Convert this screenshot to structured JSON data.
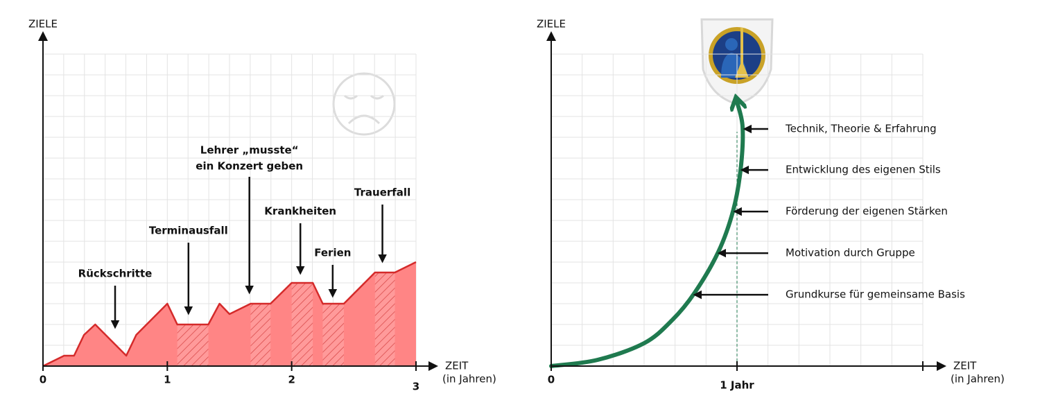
{
  "chart_data": [
    {
      "type": "area",
      "ylabel": "ZIELE",
      "xlabel": "ZEIT",
      "xunit": "(in Jahren)",
      "x": [
        0,
        0.17,
        0.25,
        0.33,
        0.42,
        0.67,
        0.75,
        1,
        1.08,
        1.33,
        1.42,
        1.5,
        1.67,
        1.83,
        2,
        2.17,
        2.25,
        2.42,
        2.67,
        2.83,
        3
      ],
      "values": [
        0,
        0.5,
        0.5,
        1.5,
        2,
        0.5,
        1.5,
        3,
        2,
        2,
        3,
        2.5,
        3,
        3,
        4,
        4,
        3,
        3,
        4.5,
        4.5,
        5
      ],
      "color": "#ff8585",
      "line_color": "#d42a2a",
      "highlight_color": "#e0202a",
      "hatched": [
        [
          1.08,
          1.33
        ],
        [
          1.67,
          1.83
        ],
        [
          2,
          2.17
        ],
        [
          2.25,
          2.42
        ],
        [
          2.67,
          2.83
        ]
      ],
      "annotations": [
        {
          "text": [
            "Rückschritte"
          ],
          "x": 0.58
        },
        {
          "text": [
            "Terminausfall"
          ],
          "x": 1.17
        },
        {
          "text": [
            "Lehrer „musste“",
            "ein Konzert geben"
          ],
          "x": 1.66
        },
        {
          "text": [
            "Krankheiten"
          ],
          "x": 2.07
        },
        {
          "text": [
            "Ferien"
          ],
          "x": 2.33
        },
        {
          "text": [
            "Trauerfall"
          ],
          "x": 2.73
        }
      ],
      "xlim": [
        0,
        3
      ],
      "ylim": [
        0,
        15
      ],
      "xticks": [
        0,
        1,
        2,
        3
      ],
      "x_minor_per_tick": 6,
      "y_grid_step": 1
    },
    {
      "type": "curve",
      "ylabel": "ZIELE",
      "xlabel": "ZEIT",
      "xunit": "(in Jahren)",
      "x": [
        0,
        0.25,
        0.5,
        0.65,
        0.77,
        0.9,
        0.98,
        1.02,
        1.03,
        1.0
      ],
      "values": [
        0,
        0.3,
        1.1,
        2.2,
        3.5,
        5.5,
        7.5,
        9.5,
        11.5,
        12.7
      ],
      "color": "#1f7a4f",
      "annotations": [
        {
          "text": "Technik, Theorie & Erfahrung",
          "x": 1.034,
          "y": 11.4
        },
        {
          "text": "Entwicklung des eigenen Stils",
          "x": 1.019,
          "y": 9.43
        },
        {
          "text": "Förderung der eigenen Stärken",
          "x": 0.981,
          "y": 7.43
        },
        {
          "text": "Motivation durch Gruppe",
          "x": 0.896,
          "y": 5.43
        },
        {
          "text": "Grundkurse für gemeinsame Basis",
          "x": 0.765,
          "y": 3.43
        }
      ],
      "xlim": [
        0,
        2
      ],
      "ylim": [
        0,
        15
      ],
      "xticks": [
        0,
        {
          "value": 1,
          "label": "1 Jahr"
        }
      ],
      "x_minor_per_tick": 6,
      "y_grid_step": 1
    }
  ]
}
